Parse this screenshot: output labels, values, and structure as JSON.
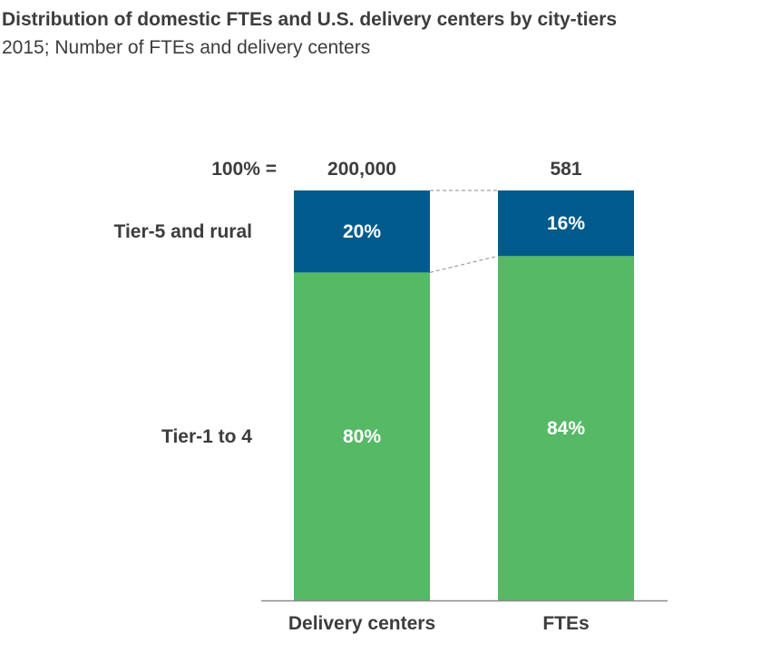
{
  "header": {
    "title": "Distribution of domestic FTEs and U.S. delivery centers by city-tiers",
    "subtitle": "2015; Number of FTEs and delivery centers"
  },
  "chart_data": {
    "type": "bar",
    "stacked": true,
    "normalized": true,
    "total_label": "100% =",
    "categories": [
      "Delivery centers",
      "FTEs"
    ],
    "totals": [
      "200,000",
      "581"
    ],
    "series": [
      {
        "name": "Tier-1 to 4",
        "values": [
          80,
          84
        ],
        "labels": [
          "80%",
          "84%"
        ],
        "color": "#55b966"
      },
      {
        "name": "Tier-5 and rural",
        "values": [
          20,
          16
        ],
        "labels": [
          "20%",
          "16%"
        ],
        "color": "#005b8c"
      }
    ],
    "ylim": [
      0,
      100
    ],
    "grid": false,
    "connector_lines": true,
    "colors": {
      "text": "#3d3d3d",
      "label_on_bar": "#ffffff",
      "axis": "#8a8a8a",
      "connector": "#8a8a8a"
    }
  }
}
